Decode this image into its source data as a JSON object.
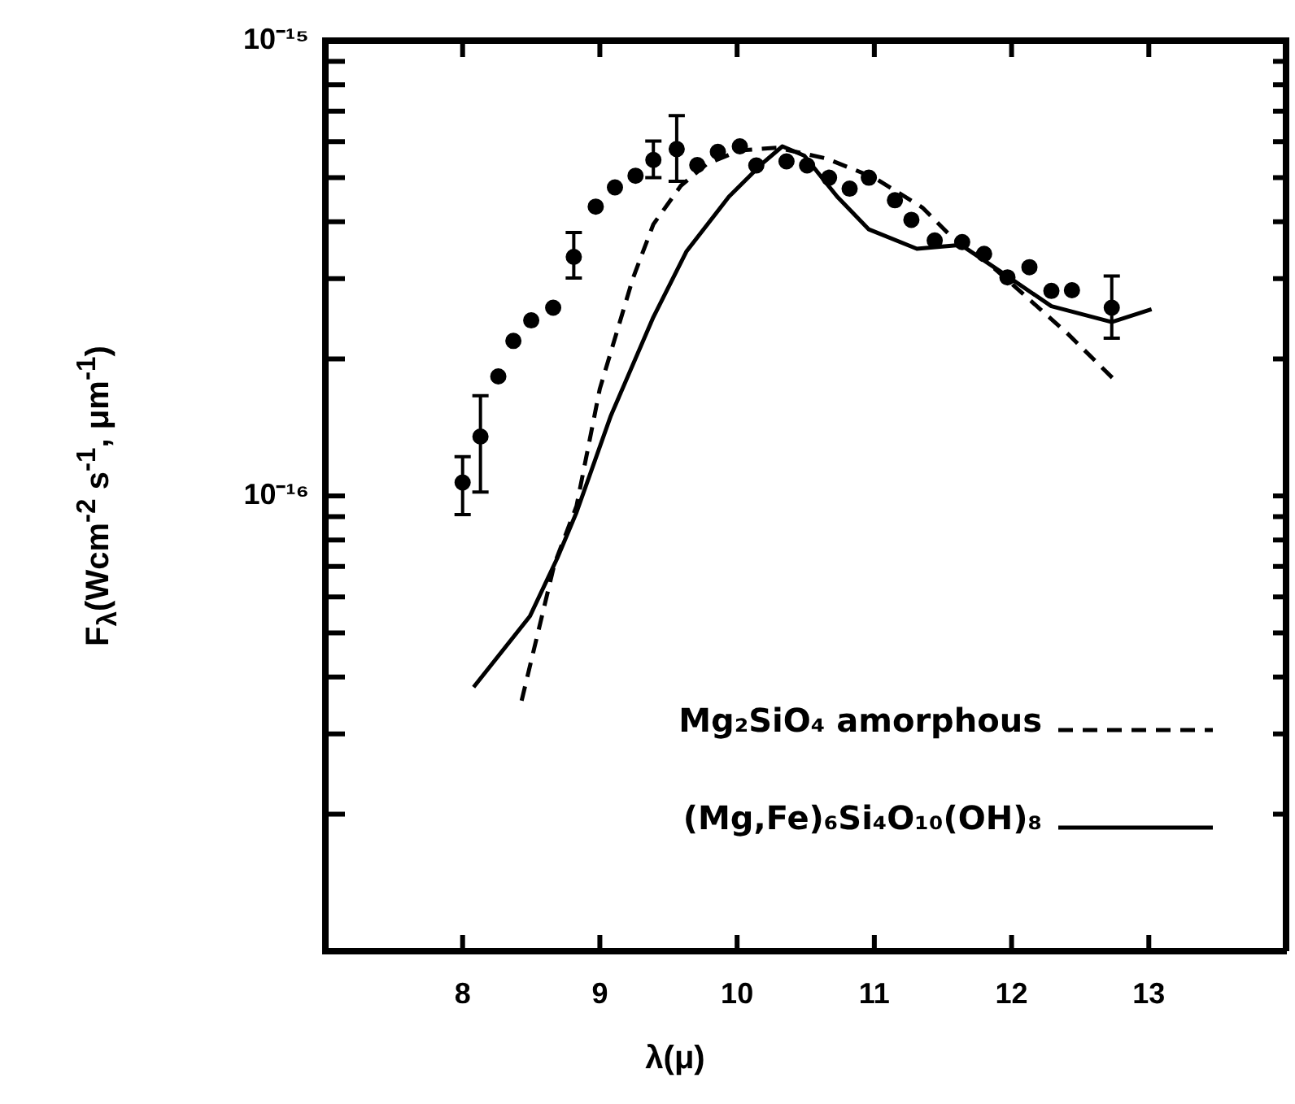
{
  "chart_data": {
    "type": "scatter",
    "xlabel": "λ(μ)",
    "ylabel": "F$_{λ}$(Wcm$^{-2}$ s$^{-1}$, μm$^{-1}$)",
    "xlim": [
      7,
      14
    ],
    "xticks": [
      8,
      9,
      10,
      11,
      12,
      13
    ],
    "ylim": [
      1e-17,
      1e-15
    ],
    "log": true,
    "grid": false,
    "legend": "bottom right",
    "marker": "circle",
    "yticks": [
      {
        "value": 1e-15,
        "label": "10⁻¹⁵"
      },
      {
        "value": 9e-16,
        "label": null
      },
      {
        "value": 8e-16,
        "label": null
      },
      {
        "value": 7e-16,
        "label": null
      },
      {
        "value": 6e-16,
        "label": null
      },
      {
        "value": 5e-16,
        "label": null
      },
      {
        "value": 4e-16,
        "label": null
      },
      {
        "value": 3e-16,
        "label": null
      },
      {
        "value": 2e-16,
        "label": null
      },
      {
        "value": 1e-16,
        "label": "10⁻¹⁶"
      },
      {
        "value": 9e-17,
        "label": null
      },
      {
        "value": 8e-17,
        "label": null
      },
      {
        "value": 7e-17,
        "label": null
      },
      {
        "value": 6e-17,
        "label": null
      },
      {
        "value": 5e-17,
        "label": null
      },
      {
        "value": 4e-17,
        "label": null
      },
      {
        "value": 3e-17,
        "label": null
      },
      {
        "value": 2e-17,
        "label": null
      }
    ],
    "series": [
      {
        "type": "scatter",
        "color": "#000000",
        "x": [
          8.0,
          8.13,
          8.26,
          8.37,
          8.5,
          8.66,
          8.81,
          8.97,
          9.11,
          9.26,
          9.39,
          9.56,
          9.71,
          9.86,
          10.02,
          10.14,
          10.36,
          10.51,
          10.67,
          10.82,
          10.96,
          11.15,
          11.27,
          11.44,
          11.64,
          11.8,
          11.97,
          12.13,
          12.29,
          12.44,
          12.73
        ],
        "values": [
          1.07e-16,
          1.35e-16,
          1.83e-16,
          2.19e-16,
          2.43e-16,
          2.59e-16,
          3.35e-16,
          4.32e-16,
          4.76e-16,
          5.05e-16,
          5.47e-16,
          5.78e-16,
          5.33e-16,
          5.7e-16,
          5.86e-16,
          5.32e-16,
          5.43e-16,
          5.32e-16,
          5e-16,
          4.73e-16,
          5e-16,
          4.46e-16,
          4.04e-16,
          3.64e-16,
          3.61e-16,
          3.4e-16,
          3.02e-16,
          3.18e-16,
          2.82e-16,
          2.83e-16,
          2.59e-16
        ],
        "errors": [
          [
            9.1e-17,
            1.22e-16
          ],
          [
            1.02e-16,
            1.66e-16
          ],
          null,
          null,
          null,
          null,
          [
            3.01e-16,
            3.79e-16
          ],
          null,
          null,
          null,
          [
            5e-16,
            6.02e-16
          ],
          [
            4.91e-16,
            6.84e-16
          ],
          null,
          null,
          null,
          null,
          null,
          null,
          null,
          null,
          null,
          null,
          null,
          null,
          null,
          null,
          null,
          null,
          null,
          null,
          [
            2.22e-16,
            3.04e-16
          ]
        ]
      },
      {
        "type": "line",
        "name": "Mg₂SiO₄ amorphous",
        "color": "#000000",
        "line_style": "dashed",
        "marker": "none",
        "x": [
          8.43,
          8.67,
          8.83,
          9.0,
          9.24,
          9.39,
          9.59,
          9.78,
          10.02,
          10.29,
          10.65,
          11.0,
          11.35,
          11.55,
          11.78,
          12.1,
          12.41,
          12.74
        ],
        "values": [
          3.55e-17,
          7.1e-17,
          9.5e-17,
          1.72e-16,
          3e-16,
          3.95e-16,
          4.8e-16,
          5.36e-16,
          5.74e-16,
          5.82e-16,
          5.51e-16,
          5e-16,
          4.3e-16,
          3.74e-16,
          3.35e-16,
          2.75e-16,
          2.27e-16,
          1.81e-16
        ]
      },
      {
        "type": "line",
        "name": "(Mg,Fe)₆Si₄O₁₀(OH)₈",
        "color": "#000000",
        "line_style": "solid",
        "marker": "none",
        "x": [
          8.08,
          8.49,
          8.69,
          8.83,
          9.08,
          9.39,
          9.63,
          9.94,
          10.18,
          10.33,
          10.49,
          10.73,
          10.96,
          11.31,
          11.63,
          11.94,
          12.29,
          12.73,
          13.02
        ],
        "values": [
          3.8e-17,
          5.44e-17,
          7.3e-17,
          9.2e-17,
          1.5e-16,
          2.47e-16,
          3.44e-16,
          4.54e-16,
          5.36e-16,
          5.86e-16,
          5.59e-16,
          4.54e-16,
          3.85e-16,
          3.49e-16,
          3.56e-16,
          3.08e-16,
          2.61e-16,
          2.41e-16,
          2.57e-16
        ]
      }
    ]
  }
}
